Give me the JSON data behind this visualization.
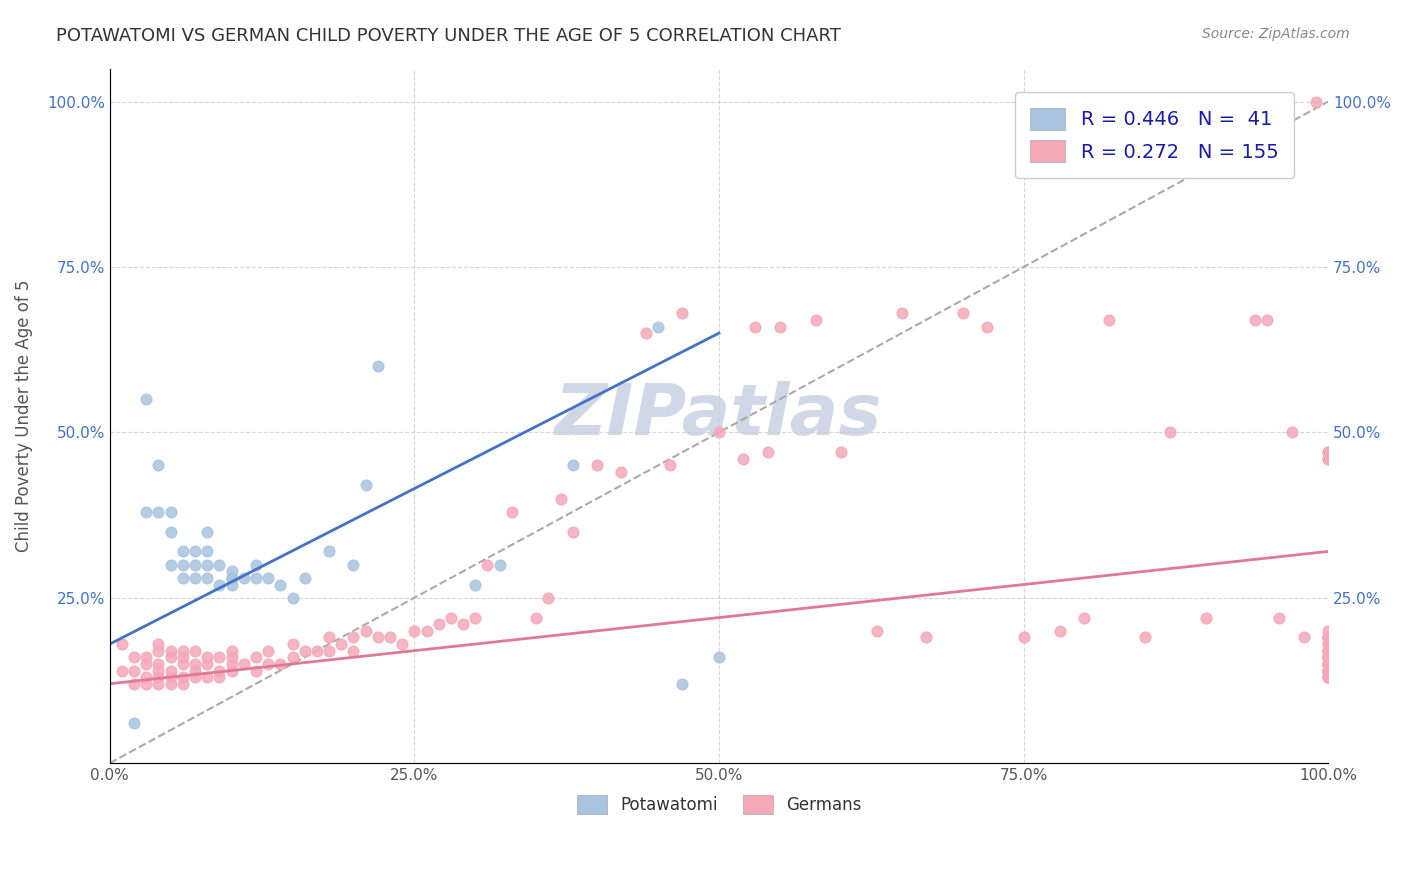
{
  "title": "POTAWATOMI VS GERMAN CHILD POVERTY UNDER THE AGE OF 5 CORRELATION CHART",
  "source_text": "Source: ZipAtlas.com",
  "xlabel": "",
  "ylabel": "Child Poverty Under the Age of 5",
  "xlim": [
    0.0,
    1.0
  ],
  "ylim": [
    0.0,
    1.05
  ],
  "x_ticks": [
    0.0,
    0.25,
    0.5,
    0.75,
    1.0
  ],
  "x_tick_labels": [
    "0.0%",
    "25.0%",
    "50.0%",
    "75.0%",
    "100.0%"
  ],
  "y_ticks": [
    0.0,
    0.25,
    0.5,
    0.75,
    1.0
  ],
  "y_tick_labels": [
    "",
    "25.0%",
    "50.0%",
    "75.0%",
    "100.0%"
  ],
  "background_color": "#ffffff",
  "grid_color": "#cccccc",
  "title_color": "#333333",
  "watermark_text": "ZIPatlas",
  "watermark_color": "#d0d8e8",
  "legend_R1": "0.446",
  "legend_N1": "41",
  "legend_R2": "0.272",
  "legend_N2": "155",
  "blue_color": "#a8c4e0",
  "pink_color": "#f4a8b8",
  "blue_line_color": "#4472c4",
  "pink_line_color": "#e07898",
  "dash_line_color": "#aaaaaa",
  "potawatomi_x": [
    0.02,
    0.03,
    0.03,
    0.04,
    0.04,
    0.05,
    0.05,
    0.05,
    0.06,
    0.06,
    0.06,
    0.07,
    0.07,
    0.07,
    0.08,
    0.08,
    0.08,
    0.08,
    0.09,
    0.09,
    0.1,
    0.1,
    0.1,
    0.1,
    0.11,
    0.12,
    0.12,
    0.13,
    0.14,
    0.15,
    0.16,
    0.18,
    0.2,
    0.21,
    0.22,
    0.3,
    0.32,
    0.38,
    0.45,
    0.47,
    0.5
  ],
  "potawatomi_y": [
    0.06,
    0.55,
    0.38,
    0.45,
    0.38,
    0.3,
    0.35,
    0.38,
    0.28,
    0.3,
    0.32,
    0.32,
    0.28,
    0.3,
    0.28,
    0.3,
    0.32,
    0.35,
    0.27,
    0.3,
    0.27,
    0.28,
    0.28,
    0.29,
    0.28,
    0.28,
    0.3,
    0.28,
    0.27,
    0.25,
    0.28,
    0.32,
    0.3,
    0.42,
    0.6,
    0.27,
    0.3,
    0.45,
    0.66,
    0.12,
    0.16
  ],
  "potawatomi_trendline_x": [
    0.0,
    0.5
  ],
  "potawatomi_trendline_y": [
    0.18,
    0.65
  ],
  "german_x": [
    0.01,
    0.01,
    0.02,
    0.02,
    0.02,
    0.03,
    0.03,
    0.03,
    0.03,
    0.04,
    0.04,
    0.04,
    0.04,
    0.04,
    0.04,
    0.05,
    0.05,
    0.05,
    0.05,
    0.05,
    0.06,
    0.06,
    0.06,
    0.06,
    0.06,
    0.07,
    0.07,
    0.07,
    0.07,
    0.08,
    0.08,
    0.08,
    0.09,
    0.09,
    0.09,
    0.1,
    0.1,
    0.1,
    0.1,
    0.11,
    0.12,
    0.12,
    0.13,
    0.13,
    0.14,
    0.15,
    0.15,
    0.16,
    0.17,
    0.18,
    0.18,
    0.19,
    0.2,
    0.2,
    0.21,
    0.22,
    0.23,
    0.24,
    0.25,
    0.26,
    0.27,
    0.28,
    0.29,
    0.3,
    0.31,
    0.33,
    0.35,
    0.36,
    0.37,
    0.38,
    0.4,
    0.42,
    0.44,
    0.46,
    0.47,
    0.5,
    0.52,
    0.53,
    0.54,
    0.55,
    0.58,
    0.6,
    0.63,
    0.65,
    0.67,
    0.7,
    0.72,
    0.75,
    0.78,
    0.8,
    0.82,
    0.85,
    0.87,
    0.9,
    0.92,
    0.93,
    0.94,
    0.95,
    0.96,
    0.97,
    0.98,
    0.99,
    1.0,
    1.0,
    1.0,
    1.0,
    1.0,
    1.0,
    1.0,
    1.0,
    1.0,
    1.0,
    1.0,
    1.0,
    1.0,
    1.0,
    1.0,
    1.0,
    1.0,
    1.0,
    1.0,
    1.0,
    1.0,
    1.0,
    1.0,
    1.0,
    1.0,
    1.0,
    1.0,
    1.0,
    1.0,
    1.0,
    1.0,
    1.0,
    1.0,
    1.0,
    1.0,
    1.0,
    1.0,
    1.0,
    1.0,
    1.0,
    1.0,
    1.0,
    1.0,
    1.0,
    1.0,
    1.0,
    1.0,
    1.0,
    1.0,
    1.0,
    1.0,
    1.0,
    1.0
  ],
  "german_y": [
    0.14,
    0.18,
    0.12,
    0.14,
    0.16,
    0.12,
    0.13,
    0.15,
    0.16,
    0.12,
    0.13,
    0.14,
    0.15,
    0.17,
    0.18,
    0.12,
    0.13,
    0.14,
    0.16,
    0.17,
    0.12,
    0.13,
    0.15,
    0.16,
    0.17,
    0.13,
    0.14,
    0.15,
    0.17,
    0.13,
    0.15,
    0.16,
    0.13,
    0.14,
    0.16,
    0.14,
    0.15,
    0.16,
    0.17,
    0.15,
    0.14,
    0.16,
    0.15,
    0.17,
    0.15,
    0.16,
    0.18,
    0.17,
    0.17,
    0.17,
    0.19,
    0.18,
    0.17,
    0.19,
    0.2,
    0.19,
    0.19,
    0.18,
    0.2,
    0.2,
    0.21,
    0.22,
    0.21,
    0.22,
    0.3,
    0.38,
    0.22,
    0.25,
    0.4,
    0.35,
    0.45,
    0.44,
    0.65,
    0.45,
    0.68,
    0.5,
    0.46,
    0.66,
    0.47,
    0.66,
    0.67,
    0.47,
    0.2,
    0.68,
    0.19,
    0.68,
    0.66,
    0.19,
    0.2,
    0.22,
    0.67,
    0.19,
    0.5,
    0.22,
    1.0,
    1.0,
    0.67,
    0.67,
    0.22,
    0.5,
    0.19,
    1.0,
    0.2,
    0.47,
    0.46,
    0.19,
    0.19,
    0.18,
    0.47,
    0.46,
    0.19,
    0.18,
    0.17,
    0.19,
    0.16,
    0.17,
    0.16,
    0.15,
    0.15,
    0.14,
    0.14,
    0.15,
    0.16,
    0.17,
    0.14,
    0.15,
    0.16,
    0.17,
    0.16,
    0.17,
    0.16,
    0.15,
    0.16,
    0.14,
    0.15,
    0.16,
    0.14,
    0.15,
    0.14,
    0.15,
    0.13,
    0.14,
    0.14,
    0.14,
    0.13,
    0.14,
    0.14,
    0.14,
    0.14,
    0.14,
    0.14,
    0.13,
    0.13,
    0.13,
    0.14
  ],
  "german_trendline_x": [
    0.0,
    1.0
  ],
  "german_trendline_y": [
    0.12,
    0.32
  ],
  "diag_line_x": [
    0.0,
    1.0
  ],
  "diag_line_y": [
    0.0,
    1.0
  ]
}
